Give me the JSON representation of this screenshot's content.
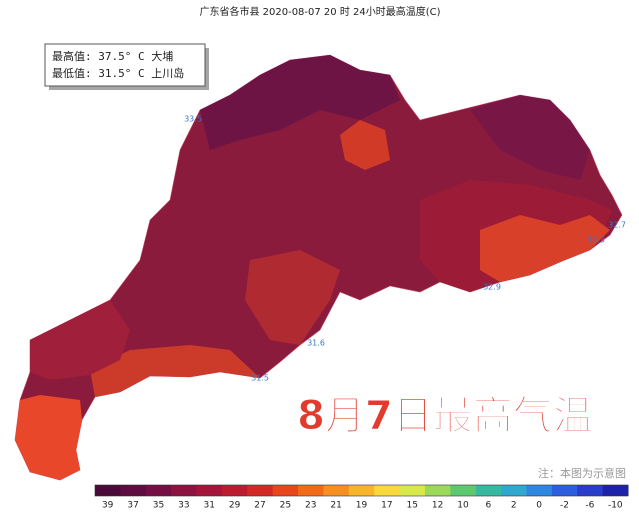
{
  "title": "广东省各市县 2020-08-07 20 时 24小时最高温度(C)",
  "stats": {
    "max": "最高值: 37.5° C 大埔",
    "min": "最低值: 31.5° C 上川岛"
  },
  "banner": "8月7日最高气温",
  "note": "注：本图为示意图",
  "station_labels": [
    "33.5",
    "32.9",
    "32.7",
    "33.3",
    "31.6",
    "31.5"
  ],
  "legend": {
    "ticks": [
      39,
      37,
      35,
      33,
      31,
      29,
      27,
      25,
      23,
      21,
      19,
      17,
      15,
      12,
      10,
      6,
      2,
      0,
      -2,
      -6,
      -10
    ],
    "colors": [
      "#4a0a3a",
      "#5e0c42",
      "#750e44",
      "#8c1240",
      "#a5153a",
      "#bd1c30",
      "#d42a26",
      "#e8471c",
      "#f06a18",
      "#f59020",
      "#f8b42a",
      "#f8d83a",
      "#d8e84a",
      "#9cd85a",
      "#5ec870",
      "#38b8a0",
      "#30a8d0",
      "#2f86e0",
      "#2c5ee0",
      "#2a3ccc",
      "#1e22a8"
    ]
  }
}
